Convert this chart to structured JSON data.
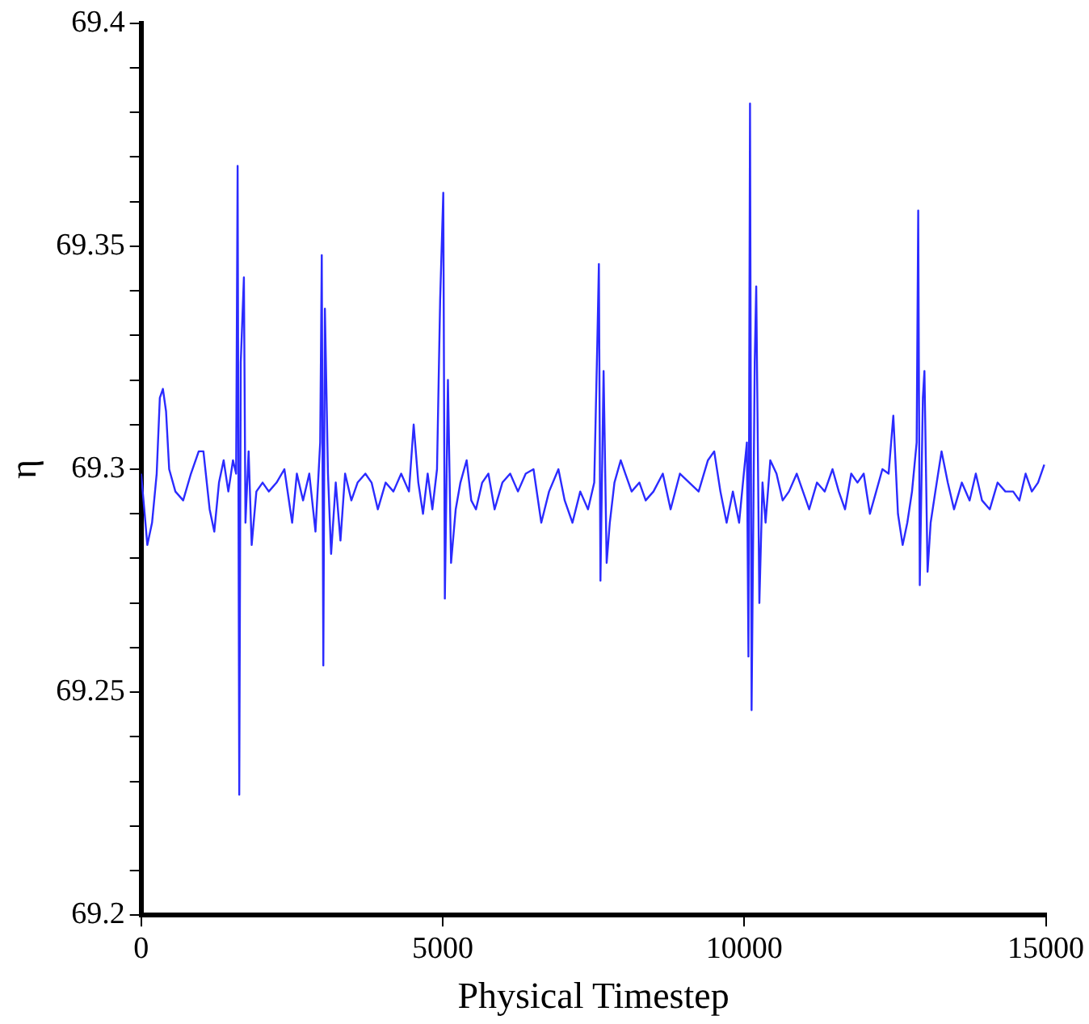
{
  "chart_data": {
    "type": "line",
    "xlabel": "Physical Timestep",
    "ylabel": "η",
    "xlim": [
      0,
      15000
    ],
    "xticks": [
      0,
      5000,
      10000,
      15000
    ],
    "ylim": [
      69.2,
      69.4
    ],
    "yticks": [
      69.2,
      {
        "value": 69.21,
        "label": null
      },
      {
        "value": 69.22,
        "label": null
      },
      {
        "value": 69.23,
        "label": null
      },
      {
        "value": 69.24,
        "label": null
      },
      69.25,
      {
        "value": 69.26,
        "label": null
      },
      {
        "value": 69.27,
        "label": null
      },
      {
        "value": 69.28,
        "label": null
      },
      {
        "value": 69.29,
        "label": null
      },
      69.3,
      {
        "value": 69.31,
        "label": null
      },
      {
        "value": 69.32,
        "label": null
      },
      {
        "value": 69.33,
        "label": null
      },
      {
        "value": 69.34,
        "label": null
      },
      69.35,
      {
        "value": 69.36,
        "label": null
      },
      {
        "value": 69.37,
        "label": null
      },
      {
        "value": 69.38,
        "label": null
      },
      {
        "value": 69.39,
        "label": null
      },
      69.4
    ],
    "grid": false,
    "legend": false,
    "marker": "none",
    "line_style": "solid",
    "series": [
      {
        "color": "#2b2bff",
        "x": [
          0,
          52,
          103,
          181,
          258,
          310,
          361,
          413,
          465,
          568,
          697,
          826,
          955,
          1033,
          1136,
          1213,
          1291,
          1368,
          1446,
          1523,
          1575,
          1600,
          1627,
          1652,
          1704,
          1730,
          1782,
          1833,
          1911,
          2014,
          2117,
          2246,
          2375,
          2504,
          2582,
          2685,
          2788,
          2891,
          2969,
          2995,
          3021,
          3047,
          3098,
          3150,
          3227,
          3305,
          3382,
          3486,
          3589,
          3718,
          3821,
          3925,
          4054,
          4183,
          4312,
          4441,
          4519,
          4596,
          4674,
          4751,
          4829,
          4906,
          4958,
          5010,
          5036,
          5087,
          5139,
          5216,
          5294,
          5397,
          5474,
          5552,
          5655,
          5758,
          5861,
          5990,
          6119,
          6248,
          6377,
          6506,
          6635,
          6764,
          6919,
          7023,
          7152,
          7281,
          7410,
          7513,
          7565,
          7590,
          7616,
          7668,
          7719,
          7771,
          7848,
          7952,
          8029,
          8133,
          8262,
          8366,
          8495,
          8650,
          8779,
          8934,
          9089,
          9244,
          9398,
          9502,
          9605,
          9708,
          9812,
          9915,
          9993,
          10044,
          10070,
          10096,
          10122,
          10174,
          10199,
          10251,
          10303,
          10354,
          10432,
          10535,
          10638,
          10742,
          10871,
          10974,
          11077,
          11206,
          11335,
          11464,
          11568,
          11671,
          11774,
          11878,
          11981,
          12084,
          12188,
          12291,
          12394,
          12472,
          12549,
          12627,
          12704,
          12782,
          12859,
          12885,
          12911,
          12962,
          12988,
          13040,
          13091,
          13169,
          13272,
          13375,
          13479,
          13608,
          13737,
          13840,
          13943,
          14072,
          14201,
          14330,
          14459,
          14562,
          14666,
          14769,
          14872,
          14975
        ],
        "values": [
          69.299,
          69.291,
          69.283,
          69.288,
          69.299,
          69.316,
          69.318,
          69.313,
          69.3,
          69.295,
          69.293,
          69.299,
          69.304,
          69.304,
          69.291,
          69.286,
          69.297,
          69.302,
          69.295,
          69.302,
          69.299,
          69.368,
          69.227,
          69.324,
          69.343,
          69.288,
          69.304,
          69.283,
          69.295,
          69.297,
          69.295,
          69.297,
          69.3,
          69.288,
          69.299,
          69.293,
          69.299,
          69.286,
          69.306,
          69.348,
          69.256,
          69.336,
          69.299,
          69.281,
          69.297,
          69.284,
          69.299,
          69.293,
          69.297,
          69.299,
          69.297,
          69.291,
          69.297,
          69.295,
          69.299,
          69.295,
          69.31,
          69.297,
          69.29,
          69.299,
          69.291,
          69.3,
          69.338,
          69.362,
          69.271,
          69.32,
          69.279,
          69.291,
          69.297,
          69.302,
          69.293,
          69.291,
          69.297,
          69.299,
          69.291,
          69.297,
          69.299,
          69.295,
          69.299,
          69.3,
          69.288,
          69.295,
          69.3,
          69.293,
          69.288,
          69.295,
          69.291,
          69.297,
          69.329,
          69.346,
          69.275,
          69.322,
          69.279,
          69.288,
          69.297,
          69.302,
          69.299,
          69.295,
          69.297,
          69.293,
          69.295,
          69.299,
          69.291,
          69.299,
          69.297,
          69.295,
          69.302,
          69.304,
          69.295,
          69.288,
          69.295,
          69.288,
          69.299,
          69.306,
          69.258,
          69.382,
          69.246,
          69.324,
          69.341,
          69.27,
          69.297,
          69.288,
          69.302,
          69.299,
          69.293,
          69.295,
          69.299,
          69.295,
          69.291,
          69.297,
          69.295,
          69.3,
          69.295,
          69.291,
          69.299,
          69.297,
          69.299,
          69.29,
          69.295,
          69.3,
          69.299,
          69.312,
          69.29,
          69.283,
          69.288,
          69.295,
          69.306,
          69.358,
          69.274,
          69.316,
          69.322,
          69.277,
          69.288,
          69.295,
          69.304,
          69.297,
          69.291,
          69.297,
          69.293,
          69.299,
          69.293,
          69.291,
          69.297,
          69.295,
          69.295,
          69.293,
          69.299,
          69.295,
          69.297,
          69.301
        ]
      }
    ]
  }
}
